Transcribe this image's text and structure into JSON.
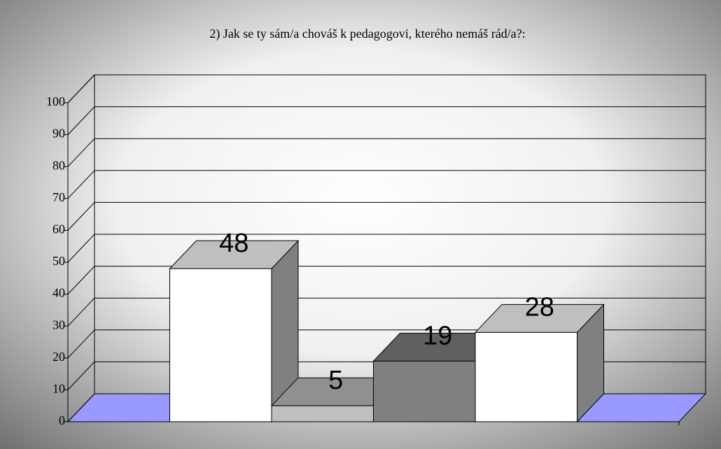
{
  "chart_data": {
    "type": "bar3d",
    "title": "2) Jak se ty sám/a chováš k pedagogovi, kterého nemáš rád/a?:",
    "categories": [
      null,
      null,
      null,
      null
    ],
    "values": [
      48,
      5,
      19,
      28
    ],
    "colors": [
      "#ffffff",
      "#c0c0c0",
      "#808080",
      "#ffffff"
    ],
    "floor_color": "#9999ff",
    "ylim": [
      0,
      100
    ],
    "yticks": [
      0,
      10,
      20,
      30,
      40,
      50,
      60,
      70,
      80,
      90,
      100
    ],
    "grid": true
  }
}
